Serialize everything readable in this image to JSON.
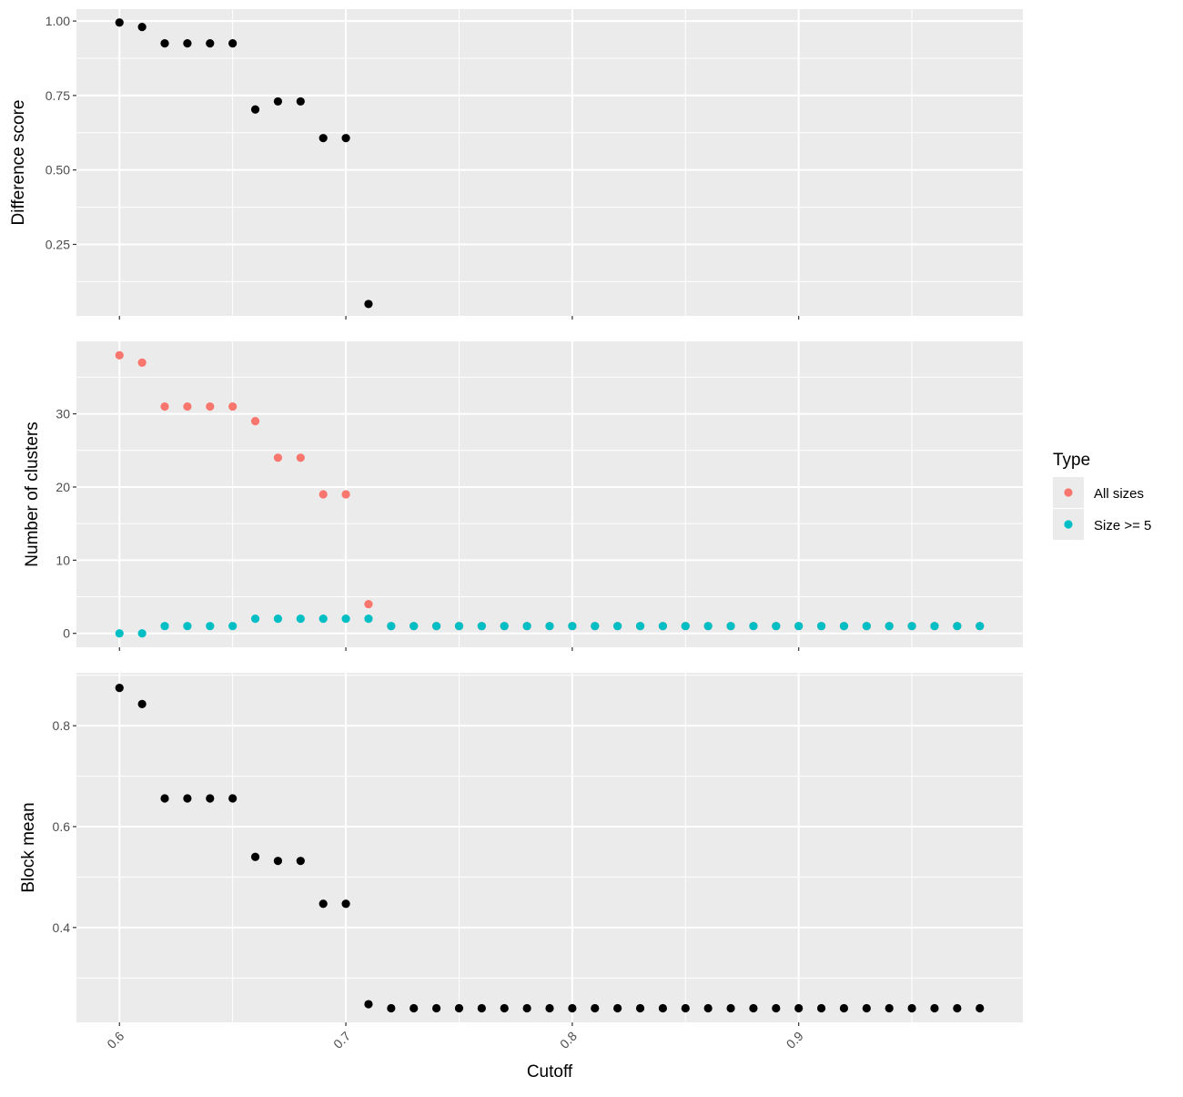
{
  "chart_data": {
    "type": "scatter",
    "xlabel": "Cutoff",
    "x_ticks": [
      0.6,
      0.7,
      0.8,
      0.9
    ],
    "x_tick_labels": [
      "0.6",
      "0.7",
      "0.8",
      "0.9"
    ],
    "xlim": [
      0.581,
      0.999
    ],
    "colors": {
      "black": "#000000",
      "all_sizes": "#F8766D",
      "size_ge_5": "#00BFC4",
      "panel_bg": "#EBEBEB",
      "grid": "#FFFFFF"
    },
    "legend": {
      "title": "Type",
      "position": "right",
      "entries": [
        {
          "label": "All sizes",
          "color": "#F8766D"
        },
        {
          "label": "Size >= 5",
          "color": "#00BFC4"
        }
      ]
    },
    "panels": [
      {
        "id": "difference",
        "ylabel": "Difference score",
        "ylim": [
          0.01,
          1.04
        ],
        "y_ticks": [
          0.25,
          0.5,
          0.75,
          1.0
        ],
        "y_tick_labels": [
          "0.25",
          "0.50",
          "0.75",
          "1.00"
        ],
        "series": [
          {
            "color": "#000000",
            "x": [
              0.6,
              0.61,
              0.62,
              0.63,
              0.64,
              0.65,
              0.66,
              0.67,
              0.68,
              0.69,
              0.7,
              0.71
            ],
            "y": [
              0.995,
              0.98,
              0.925,
              0.925,
              0.925,
              0.925,
              0.703,
              0.73,
              0.73,
              0.607,
              0.607,
              0.05
            ]
          }
        ]
      },
      {
        "id": "clusters",
        "ylabel": "Number of clusters",
        "ylim": [
          -1.9,
          39.9
        ],
        "y_ticks": [
          0,
          10,
          20,
          30
        ],
        "y_tick_labels": [
          "0",
          "10",
          "20",
          "30"
        ],
        "series": [
          {
            "name": "All sizes",
            "color": "#F8766D",
            "x": [
              0.6,
              0.61,
              0.62,
              0.63,
              0.64,
              0.65,
              0.66,
              0.67,
              0.68,
              0.69,
              0.7,
              0.71,
              0.72,
              0.73,
              0.74,
              0.75,
              0.76,
              0.77,
              0.78,
              0.79,
              0.8,
              0.81,
              0.82,
              0.83,
              0.84,
              0.85,
              0.86,
              0.87,
              0.88,
              0.89,
              0.9,
              0.91,
              0.92,
              0.93,
              0.94,
              0.95,
              0.96,
              0.97,
              0.98
            ],
            "y": [
              38,
              37,
              31,
              31,
              31,
              31,
              29,
              24,
              24,
              19,
              19,
              4,
              1,
              1,
              1,
              1,
              1,
              1,
              1,
              1,
              1,
              1,
              1,
              1,
              1,
              1,
              1,
              1,
              1,
              1,
              1,
              1,
              1,
              1,
              1,
              1,
              1,
              1,
              1
            ]
          },
          {
            "name": "Size >= 5",
            "color": "#00BFC4",
            "x": [
              0.6,
              0.61,
              0.62,
              0.63,
              0.64,
              0.65,
              0.66,
              0.67,
              0.68,
              0.69,
              0.7,
              0.71,
              0.72,
              0.73,
              0.74,
              0.75,
              0.76,
              0.77,
              0.78,
              0.79,
              0.8,
              0.81,
              0.82,
              0.83,
              0.84,
              0.85,
              0.86,
              0.87,
              0.88,
              0.89,
              0.9,
              0.91,
              0.92,
              0.93,
              0.94,
              0.95,
              0.96,
              0.97,
              0.98
            ],
            "y": [
              0,
              0,
              1,
              1,
              1,
              1,
              2,
              2,
              2,
              2,
              2,
              2,
              1,
              1,
              1,
              1,
              1,
              1,
              1,
              1,
              1,
              1,
              1,
              1,
              1,
              1,
              1,
              1,
              1,
              1,
              1,
              1,
              1,
              1,
              1,
              1,
              1,
              1,
              1
            ]
          }
        ]
      },
      {
        "id": "blockmean",
        "ylabel": "Block mean",
        "ylim": [
          0.212,
          0.905
        ],
        "y_ticks": [
          0.4,
          0.6,
          0.8
        ],
        "y_tick_labels": [
          "0.4",
          "0.6",
          "0.8"
        ],
        "series": [
          {
            "color": "#000000",
            "x": [
              0.6,
              0.61,
              0.62,
              0.63,
              0.64,
              0.65,
              0.66,
              0.67,
              0.68,
              0.69,
              0.7,
              0.71,
              0.72,
              0.73,
              0.74,
              0.75,
              0.76,
              0.77,
              0.78,
              0.79,
              0.8,
              0.81,
              0.82,
              0.83,
              0.84,
              0.85,
              0.86,
              0.87,
              0.88,
              0.89,
              0.9,
              0.91,
              0.92,
              0.93,
              0.94,
              0.95,
              0.96,
              0.97,
              0.98
            ],
            "y": [
              0.875,
              0.843,
              0.656,
              0.656,
              0.656,
              0.656,
              0.54,
              0.532,
              0.532,
              0.447,
              0.447,
              0.248,
              0.24,
              0.24,
              0.24,
              0.24,
              0.24,
              0.24,
              0.24,
              0.24,
              0.24,
              0.24,
              0.24,
              0.24,
              0.24,
              0.24,
              0.24,
              0.24,
              0.24,
              0.24,
              0.24,
              0.24,
              0.24,
              0.24,
              0.24,
              0.24,
              0.24,
              0.24,
              0.24
            ]
          }
        ]
      }
    ]
  }
}
